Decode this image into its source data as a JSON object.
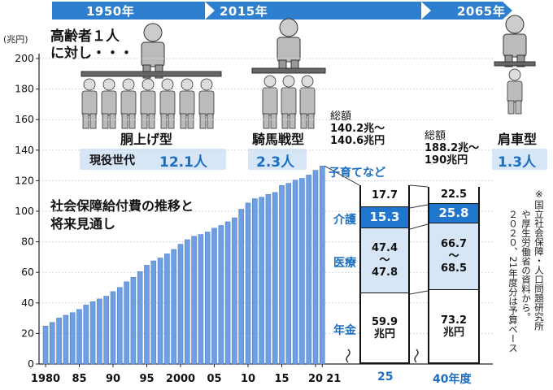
{
  "eras": [
    {
      "label": "1950年"
    },
    {
      "label": "2015年"
    },
    {
      "label": "2065年"
    }
  ],
  "caption_elderly": [
    "高齢者１人",
    "に対し・・・"
  ],
  "eras_info": [
    {
      "type_label": "胴上げ型",
      "workers_label": "現役世代",
      "workers_value": "12.1人"
    },
    {
      "type_label": "騎馬戦型",
      "workers_value": "2.3人"
    },
    {
      "type_label": "肩車型",
      "workers_value": "1.3人"
    }
  ],
  "chart_title": [
    "社会保障給付費の推移と",
    "将来見通し"
  ],
  "note": [
    "※国立社会保障・人口問題研究所",
    "や厚生労働省の資料から。",
    "２０２０、21年度分は予算ベース"
  ],
  "colors": {
    "accent": "#2f7fd0",
    "bar": "#6f9fe0",
    "bar_dark": "#4a82d0",
    "highlight": "#1f76cc",
    "light": "#d7e6f6"
  },
  "chart_data": {
    "type": "bar",
    "yunit": "(兆円)",
    "ylim": [
      0,
      200
    ],
    "yticks": [
      0,
      20,
      40,
      60,
      80,
      100,
      120,
      140,
      160,
      180,
      200
    ],
    "x": [
      1980,
      1981,
      1982,
      1983,
      1984,
      1985,
      1986,
      1987,
      1988,
      1989,
      1990,
      1991,
      1992,
      1993,
      1994,
      1995,
      1996,
      1997,
      1998,
      1999,
      2000,
      2001,
      2002,
      2003,
      2004,
      2005,
      2006,
      2007,
      2008,
      2009,
      2010,
      2011,
      2012,
      2013,
      2014,
      2015,
      2016,
      2017,
      2018,
      2019,
      2020,
      2021
    ],
    "values": [
      24.8,
      27.2,
      30.1,
      31.9,
      33.6,
      35.7,
      38.6,
      40.8,
      42.6,
      44.4,
      47.4,
      50.1,
      53.8,
      56.8,
      60.5,
      64.7,
      67.5,
      69.4,
      72.1,
      75.0,
      78.4,
      81.4,
      83.6,
      84.8,
      86.4,
      88.9,
      90.7,
      93.1,
      95.7,
      101.3,
      105.4,
      108.2,
      109.2,
      111.0,
      112.3,
      116.9,
      118.3,
      120.4,
      121.5,
      123.7,
      126.8,
      129.6
    ],
    "xtick_labels": [
      "1980",
      "85",
      "90",
      "95",
      "2000",
      "05",
      "10",
      "15",
      "20",
      "21"
    ],
    "stacks": [
      {
        "label": "25",
        "total_label": [
          "総額",
          "140.2兆～",
          "140.6兆円"
        ],
        "segments": [
          {
            "category": "年金",
            "lines": [
              "59.9",
              "兆円"
            ],
            "value": 59.9,
            "fill": "white"
          },
          {
            "category": "医療",
            "lines": [
              "47.4",
              "～",
              "47.8"
            ],
            "value": 47.6,
            "fill": "light"
          },
          {
            "category": "介護",
            "lines": [
              "15.3"
            ],
            "value": 15.3,
            "fill": "highlight"
          },
          {
            "category": "子育てなど",
            "lines": [
              "17.7"
            ],
            "value": 17.7,
            "fill": "white"
          }
        ]
      },
      {
        "label": "40年度",
        "total_label": [
          "総額",
          "188.2兆～",
          "190兆円"
        ],
        "segments": [
          {
            "category": "",
            "lines": [
              "73.2",
              "兆円"
            ],
            "value": 73.2,
            "fill": "white"
          },
          {
            "category": "",
            "lines": [
              "66.7",
              "～",
              "68.5"
            ],
            "value": 67.6,
            "fill": "light"
          },
          {
            "category": "",
            "lines": [
              "25.8"
            ],
            "value": 25.8,
            "fill": "highlight"
          },
          {
            "category": "",
            "lines": [
              "22.5"
            ],
            "value": 22.5,
            "fill": "white"
          }
        ]
      }
    ]
  }
}
